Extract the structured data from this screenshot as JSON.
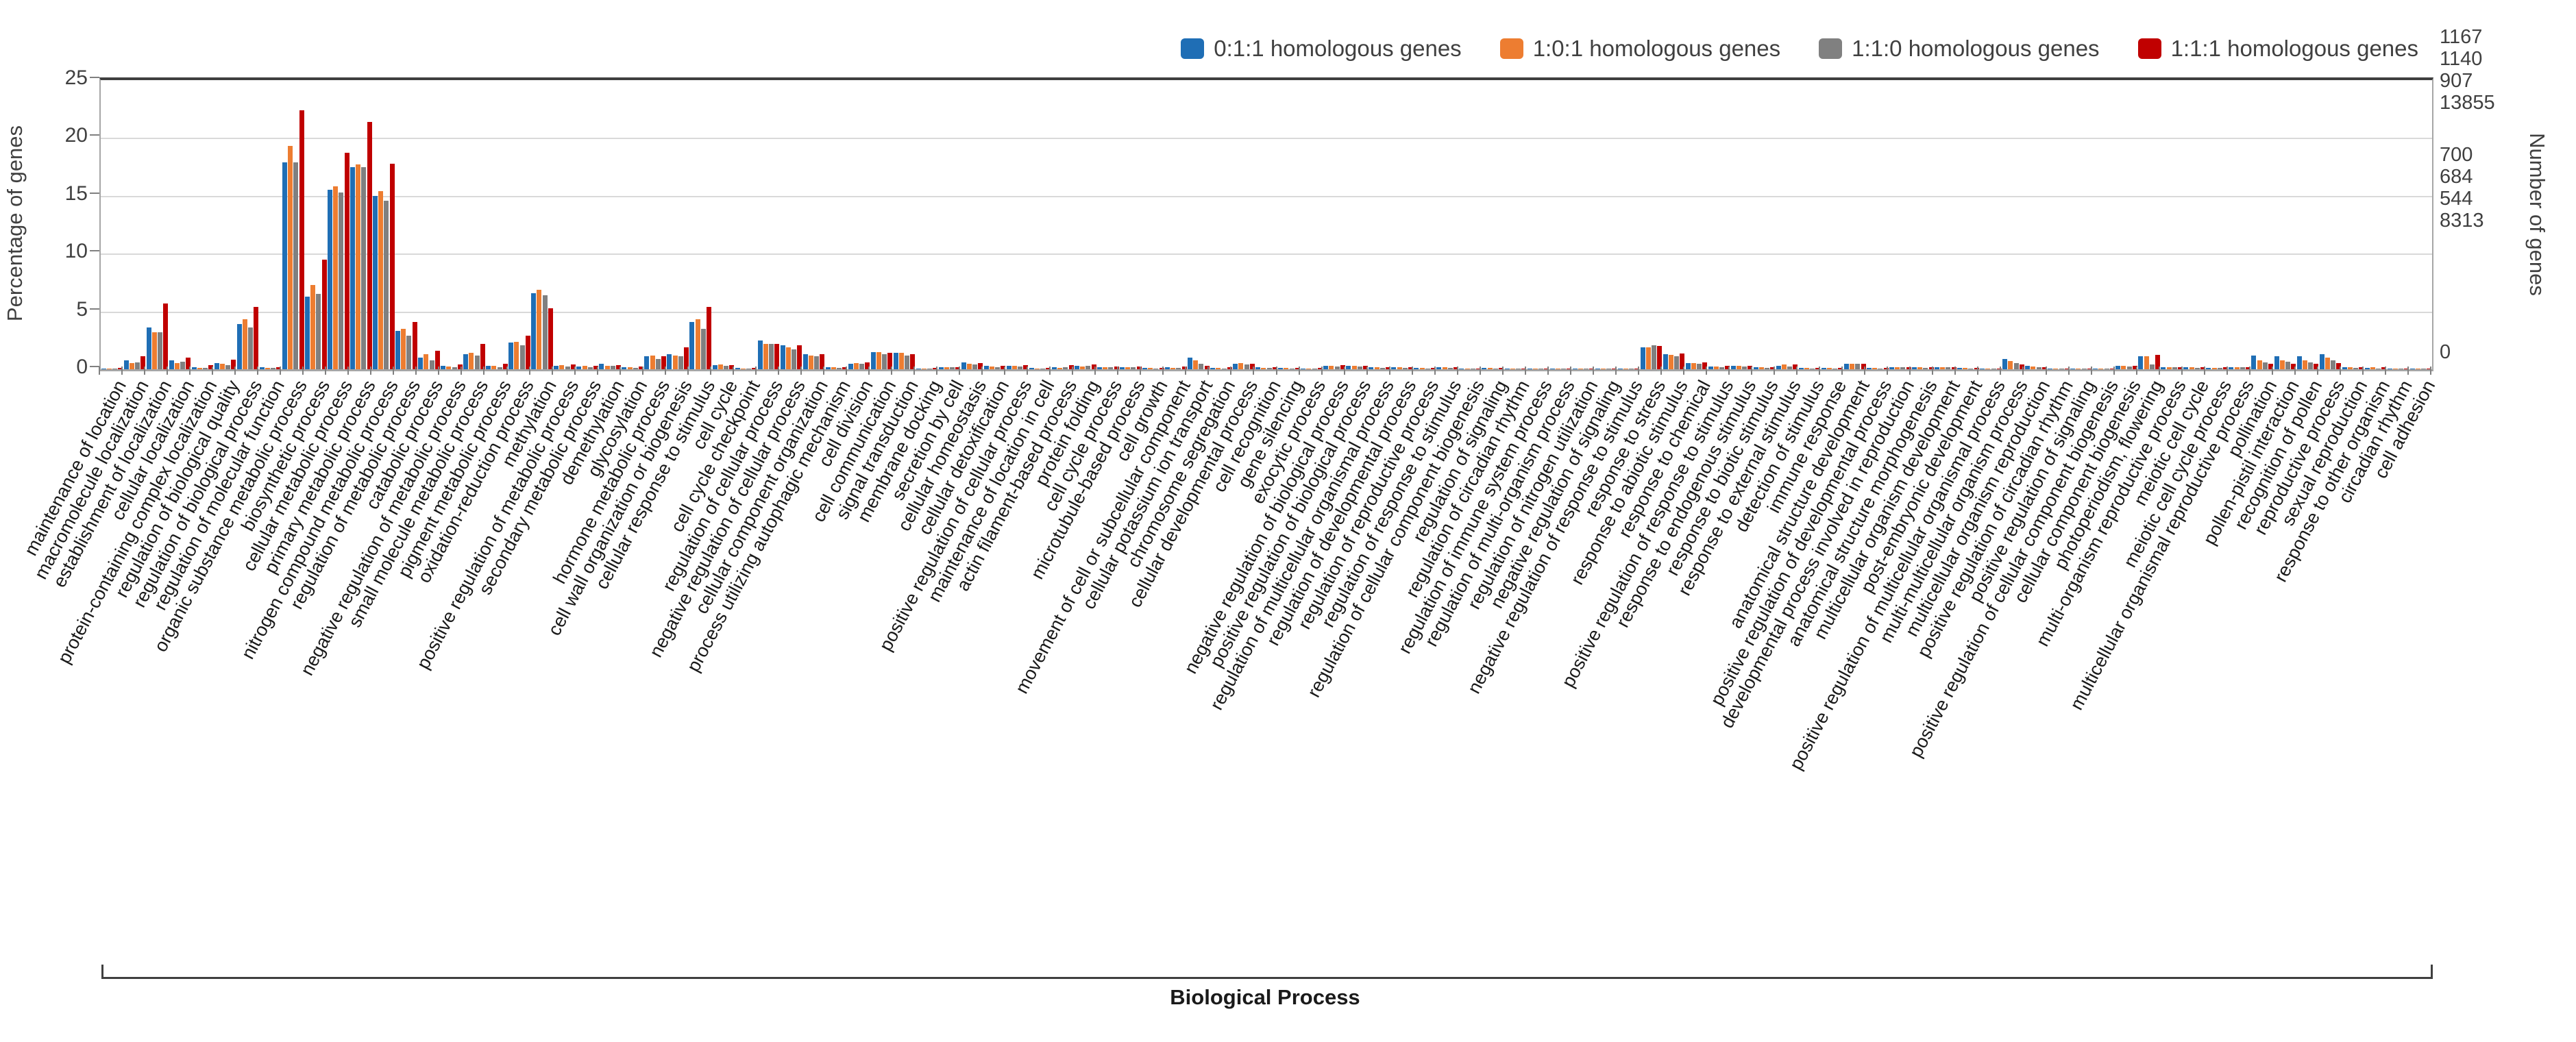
{
  "legend": {
    "items": [
      {
        "label": "0:1:1 homologous genes",
        "color": "#1f6eb5"
      },
      {
        "label": "1:0:1 homologous genes",
        "color": "#ed7d31"
      },
      {
        "label": "1:1:0 homologous genes",
        "color": "#808080"
      },
      {
        "label": "1:1:1 homologous genes",
        "color": "#c00000"
      }
    ]
  },
  "left_axis": {
    "title": "Percentage of genes",
    "ticks": [
      "25",
      "20",
      "15",
      "10",
      "5",
      "0"
    ],
    "max": 25
  },
  "right_axis": {
    "title": "Number of genes",
    "top_values": [
      "1167",
      "1140",
      "907",
      "13855"
    ],
    "mid_values": [
      "700",
      "684",
      "544",
      "8313"
    ],
    "zero_value": "0"
  },
  "bottom_axis": {
    "group_label": "Biological Process"
  },
  "chart_data": {
    "type": "bar",
    "title": "",
    "xlabel": "Biological Process",
    "ylabel": "Percentage of genes",
    "y2label": "Number of genes",
    "ylim": [
      0,
      25
    ],
    "grid": true,
    "legend_position": "top-right",
    "categories": [
      "maintenance of location",
      "macromolecule localization",
      "establishment of localization",
      "cellular localization",
      "protein-containing complex localization",
      "regulation of biological quality",
      "regulation of biological process",
      "regulation of molecular function",
      "organic substance metabolic process",
      "biosynthetic process",
      "cellular metabolic process",
      "primary metabolic process",
      "nitrogen compound metabolic process",
      "regulation of metabolic process",
      "catabolic process",
      "negative regulation of metabolic process",
      "small molecule metabolic process",
      "pigment metabolic process",
      "oxidation-reduction process",
      "methylation",
      "positive regulation of metabolic process",
      "secondary metabolic process",
      "demethylation",
      "glycosylation",
      "hormone metabolic process",
      "cell wall organization or biogenesis",
      "cellular response to stimulus",
      "cell cycle",
      "cell cycle checkpoint",
      "regulation of cellular process",
      "negative regulation of cellular process",
      "cellular component organization",
      "process utilizing autophagic mechanism",
      "cell division",
      "cell communication",
      "signal transduction",
      "membrane docking",
      "secretion by cell",
      "cellular homeostasis",
      "cellular detoxification",
      "positive regulation of cellular process",
      "maintenance of location in cell",
      "actin filament-based process",
      "protein folding",
      "cell cycle process",
      "microtubule-based process",
      "cell growth",
      "movement of cell or subcellular component",
      "cellular potassium ion transport",
      "chromosome segregation",
      "cellular developmental process",
      "cell recognition",
      "gene silencing",
      "exocytic process",
      "negative regulation of biological process",
      "positive regulation of biological process",
      "regulation of multicellular organismal process",
      "regulation of developmental process",
      "regulation of reproductive process",
      "regulation of response to stimulus",
      "regulation of cellular component biogenesis",
      "regulation of signaling",
      "regulation of circadian rhythm",
      "regulation of immune system process",
      "regulation of multi-organism process",
      "regulation of nitrogen utilization",
      "negative regulation of signaling",
      "negative regulation of response to stimulus",
      "response to stress",
      "response to abiotic stimulus",
      "response to chemical",
      "positive regulation of response to stimulus",
      "response to endogenous stimulus",
      "response to biotic stimulus",
      "response to external stimulus",
      "detection of stimulus",
      "immune response",
      "anatomical structure development",
      "positive regulation of developmental process",
      "developmental process involved in reproduction",
      "anatomical structure morphogenesis",
      "multicellular organism development",
      "post-embryonic development",
      "positive regulation of multicellular organismal process",
      "multi-multicellular organism process",
      "multicellular organism reproduction",
      "positive regulation of circadian rhythm",
      "positive regulation of signaling",
      "positive regulation of cellular component biogenesis",
      "cellular component biogenesis",
      "photoperiodism, flowering",
      "multi-organism reproductive process",
      "meiotic cell cycle",
      "meiotic cell cycle process",
      "multicellular organismal reproductive process",
      "pollination",
      "pollen-pistil interaction",
      "recognition of pollen",
      "reproductive process",
      "sexual reproduction",
      "response to other organism",
      "circadian rhythm",
      "cell adhesion"
    ],
    "series": [
      {
        "name": "0:1:1 homologous genes",
        "color": "#1f6eb5",
        "values": [
          0.06,
          0.8,
          3.6,
          0.8,
          0.15,
          0.55,
          3.9,
          0.15,
          17.9,
          6.3,
          15.5,
          17.5,
          15.0,
          3.3,
          1.0,
          0.3,
          1.3,
          0.3,
          2.3,
          6.6,
          0.3,
          0.25,
          0.5,
          0.15,
          1.1,
          1.3,
          4.1,
          0.35,
          0.1,
          2.5,
          2.1,
          1.3,
          0.15,
          0.5,
          1.5,
          1.4,
          0.08,
          0.2,
          0.6,
          0.3,
          0.3,
          0.1,
          0.15,
          0.3,
          0.2,
          0.2,
          0.1,
          0.15,
          1.0,
          0.1,
          0.5,
          0.15,
          0.1,
          0.08,
          0.3,
          0.3,
          0.15,
          0.15,
          0.1,
          0.15,
          0.08,
          0.1,
          0.05,
          0.05,
          0.08,
          0.03,
          0.05,
          0.06,
          1.9,
          1.3,
          0.55,
          0.25,
          0.3,
          0.15,
          0.3,
          0.1,
          0.1,
          0.5,
          0.1,
          0.2,
          0.15,
          0.2,
          0.1,
          0.08,
          0.9,
          0.3,
          0.05,
          0.05,
          0.04,
          0.3,
          1.1,
          0.2,
          0.15,
          0.12,
          0.2,
          1.2,
          1.15,
          1.1,
          1.3,
          0.15,
          0.1,
          0.06,
          0.05
        ]
      },
      {
        "name": "1:0:1 homologous genes",
        "color": "#ed7d31",
        "values": [
          0.05,
          0.55,
          3.2,
          0.55,
          0.1,
          0.5,
          4.3,
          0.12,
          19.3,
          7.3,
          15.8,
          17.7,
          15.4,
          3.5,
          1.3,
          0.25,
          1.4,
          0.3,
          2.4,
          6.9,
          0.35,
          0.3,
          0.3,
          0.2,
          1.2,
          1.2,
          4.3,
          0.4,
          0.08,
          2.2,
          1.9,
          1.2,
          0.2,
          0.55,
          1.5,
          1.4,
          0.08,
          0.2,
          0.5,
          0.25,
          0.3,
          0.08,
          0.12,
          0.25,
          0.15,
          0.18,
          0.1,
          0.12,
          0.75,
          0.1,
          0.55,
          0.1,
          0.1,
          0.08,
          0.3,
          0.3,
          0.15,
          0.15,
          0.1,
          0.15,
          0.08,
          0.1,
          0.05,
          0.05,
          0.06,
          0.03,
          0.04,
          0.05,
          1.9,
          1.25,
          0.55,
          0.25,
          0.3,
          0.15,
          0.4,
          0.1,
          0.1,
          0.5,
          0.1,
          0.2,
          0.15,
          0.2,
          0.1,
          0.06,
          0.7,
          0.25,
          0.05,
          0.05,
          0.04,
          0.3,
          1.1,
          0.2,
          0.15,
          0.12,
          0.18,
          0.8,
          0.8,
          0.75,
          1.0,
          0.15,
          0.15,
          0.06,
          0.05
        ]
      },
      {
        "name": "1:1:0 homologous genes",
        "color": "#808080",
        "values": [
          0.05,
          0.6,
          3.2,
          0.65,
          0.1,
          0.35,
          3.6,
          0.1,
          17.9,
          6.5,
          15.3,
          17.5,
          14.6,
          2.9,
          0.8,
          0.2,
          1.2,
          0.2,
          2.1,
          6.4,
          0.25,
          0.2,
          0.3,
          0.1,
          0.9,
          1.1,
          3.5,
          0.3,
          0.06,
          2.2,
          1.7,
          1.1,
          0.1,
          0.45,
          1.3,
          1.2,
          0.06,
          0.15,
          0.4,
          0.2,
          0.25,
          0.06,
          0.15,
          0.3,
          0.15,
          0.15,
          0.08,
          0.1,
          0.5,
          0.08,
          0.4,
          0.1,
          0.08,
          0.06,
          0.25,
          0.25,
          0.1,
          0.12,
          0.08,
          0.1,
          0.06,
          0.08,
          0.04,
          0.04,
          0.05,
          0.02,
          0.04,
          0.04,
          2.1,
          1.1,
          0.5,
          0.2,
          0.25,
          0.1,
          0.25,
          0.08,
          0.08,
          0.45,
          0.08,
          0.15,
          0.1,
          0.15,
          0.08,
          0.05,
          0.55,
          0.2,
          0.04,
          0.04,
          0.03,
          0.25,
          0.4,
          0.15,
          0.1,
          0.1,
          0.15,
          0.6,
          0.65,
          0.6,
          0.75,
          0.1,
          0.08,
          0.05,
          0.04
        ]
      },
      {
        "name": "1:1:1 homologous genes",
        "color": "#c00000",
        "values": [
          0.1,
          1.1,
          5.7,
          1.0,
          0.35,
          0.85,
          5.4,
          0.2,
          22.4,
          9.5,
          18.7,
          21.4,
          17.8,
          4.1,
          1.6,
          0.4,
          2.2,
          0.45,
          2.9,
          5.3,
          0.4,
          0.3,
          0.35,
          0.25,
          1.1,
          1.9,
          5.4,
          0.35,
          0.1,
          2.2,
          2.1,
          1.3,
          0.2,
          0.6,
          1.4,
          1.3,
          0.1,
          0.2,
          0.55,
          0.3,
          0.35,
          0.1,
          0.35,
          0.4,
          0.25,
          0.25,
          0.12,
          0.25,
          0.3,
          0.15,
          0.5,
          0.2,
          0.12,
          0.1,
          0.35,
          0.3,
          0.15,
          0.18,
          0.1,
          0.15,
          0.08,
          0.1,
          0.08,
          0.06,
          0.08,
          0.04,
          0.06,
          0.06,
          2.0,
          1.35,
          0.6,
          0.3,
          0.3,
          0.2,
          0.4,
          0.1,
          0.12,
          0.5,
          0.1,
          0.2,
          0.15,
          0.2,
          0.1,
          0.08,
          0.4,
          0.2,
          0.05,
          0.05,
          0.05,
          0.3,
          1.25,
          0.2,
          0.2,
          0.15,
          0.2,
          0.45,
          0.5,
          0.45,
          0.55,
          0.15,
          0.15,
          0.08,
          0.06
        ]
      }
    ]
  }
}
